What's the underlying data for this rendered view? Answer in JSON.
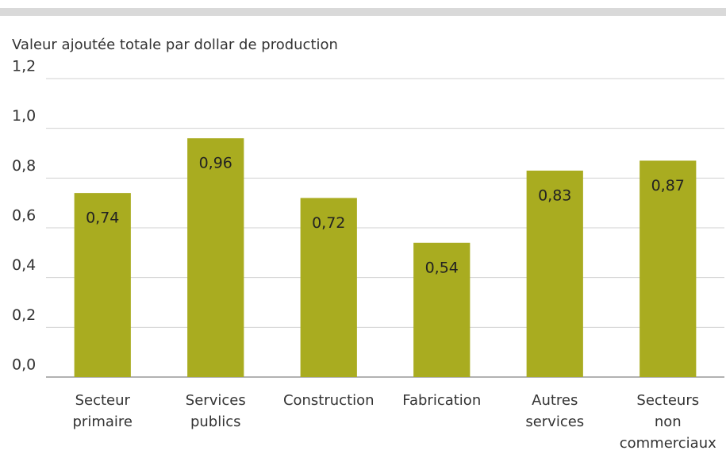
{
  "chart_data": {
    "type": "bar",
    "title": "Valeur ajoutée totale par dollar de production",
    "categories": [
      "Secteur primaire",
      "Services publics",
      "Construction",
      "Fabrication",
      "Autres services",
      "Secteurs non commerciaux"
    ],
    "values": [
      0.74,
      0.96,
      0.72,
      0.54,
      0.83,
      0.87
    ],
    "value_labels": [
      "0,74",
      "0,96",
      "0,72",
      "0,54",
      "0,83",
      "0,87"
    ],
    "color": "#a9ac20",
    "ylim": [
      0,
      1.2
    ],
    "yticks": [
      {
        "value": 0,
        "label": "0,0"
      },
      {
        "value": 0.2,
        "label": "0,2"
      },
      {
        "value": 0.4,
        "label": "0,4"
      },
      {
        "value": 0.6,
        "label": "0,6"
      },
      {
        "value": 0.8,
        "label": "0,8"
      },
      {
        "value": 1.0,
        "label": "1,0"
      },
      {
        "value": 1.2,
        "label": "1,2"
      }
    ],
    "grid": true
  }
}
